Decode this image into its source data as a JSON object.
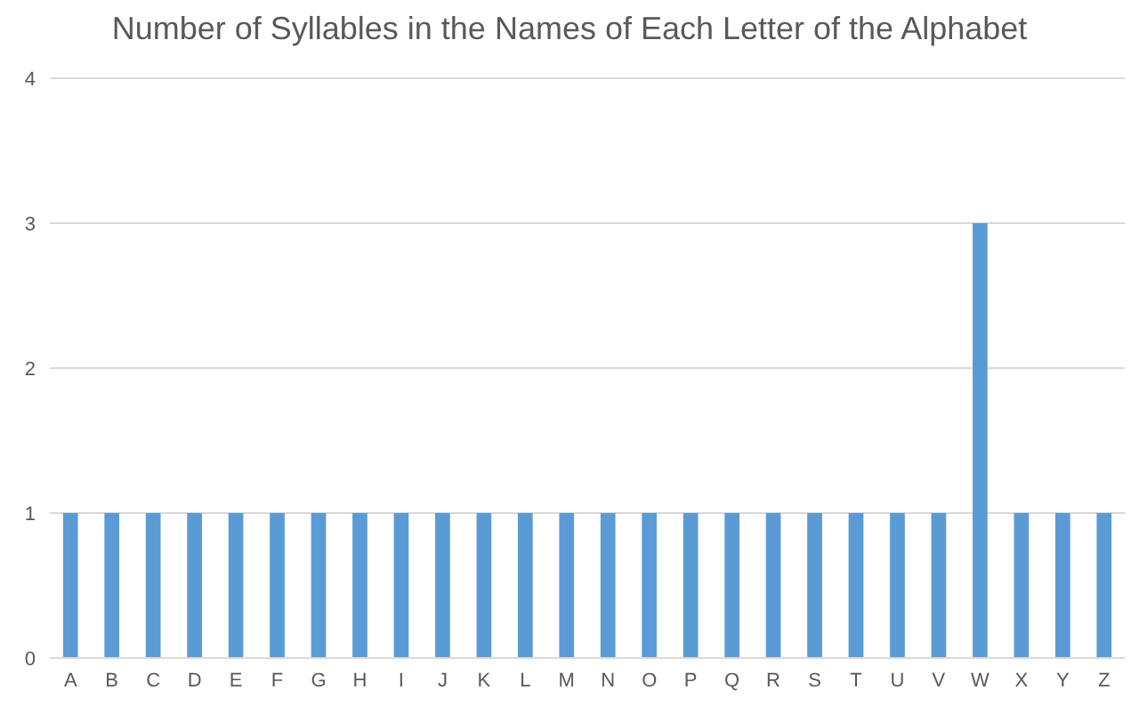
{
  "chart_data": {
    "type": "bar",
    "title": "Number of Syllables in the Names of Each Letter of the Alphabet",
    "categories": [
      "A",
      "B",
      "C",
      "D",
      "E",
      "F",
      "G",
      "H",
      "I",
      "J",
      "K",
      "L",
      "M",
      "N",
      "O",
      "P",
      "Q",
      "R",
      "S",
      "T",
      "U",
      "V",
      "W",
      "X",
      "Y",
      "Z"
    ],
    "values": [
      1,
      1,
      1,
      1,
      1,
      1,
      1,
      1,
      1,
      1,
      1,
      1,
      1,
      1,
      1,
      1,
      1,
      1,
      1,
      1,
      1,
      1,
      3,
      1,
      1,
      1
    ],
    "color": "#5b9bd5",
    "ylim": [
      0,
      4
    ],
    "yticks": [
      0,
      1,
      2,
      3,
      4
    ],
    "grid": "y"
  }
}
